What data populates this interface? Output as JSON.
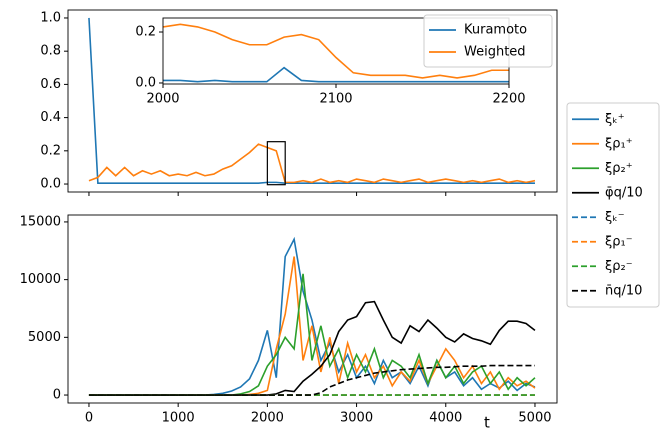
{
  "chart_data": [
    {
      "type": "line",
      "x": [
        0,
        100,
        200,
        300,
        400,
        500,
        600,
        700,
        800,
        900,
        1000,
        1100,
        1200,
        1300,
        1400,
        1500,
        1600,
        1700,
        1800,
        1900,
        2000,
        2100,
        2200,
        2300,
        2400,
        2500,
        2600,
        2700,
        2800,
        2900,
        3000,
        3100,
        3200,
        3300,
        3400,
        3500,
        3600,
        3700,
        3800,
        3900,
        4000,
        4100,
        4200,
        4300,
        4400,
        4500,
        4600,
        4700,
        4800,
        4900,
        5000
      ],
      "series": [
        {
          "color": "#1f77b4",
          "values": [
            1.0,
            0.005,
            0.005,
            0.005,
            0.005,
            0.005,
            0.005,
            0.005,
            0.005,
            0.005,
            0.005,
            0.005,
            0.005,
            0.005,
            0.005,
            0.005,
            0.005,
            0.005,
            0.005,
            0.005,
            0.01,
            0.01,
            0.005,
            0.005,
            0.005,
            0.005,
            0.005,
            0.005,
            0.005,
            0.005,
            0.005,
            0.005,
            0.005,
            0.005,
            0.005,
            0.005,
            0.005,
            0.005,
            0.005,
            0.005,
            0.005,
            0.005,
            0.005,
            0.005,
            0.005,
            0.005,
            0.005,
            0.005,
            0.005,
            0.005,
            0.005
          ]
        },
        {
          "color": "#ff7f0e",
          "values": [
            0.02,
            0.04,
            0.1,
            0.05,
            0.1,
            0.05,
            0.08,
            0.06,
            0.08,
            0.05,
            0.06,
            0.05,
            0.07,
            0.05,
            0.06,
            0.09,
            0.11,
            0.15,
            0.19,
            0.24,
            0.22,
            0.2,
            0.01,
            0.01,
            0.02,
            0.01,
            0.03,
            0.01,
            0.02,
            0.01,
            0.03,
            0.02,
            0.01,
            0.03,
            0.02,
            0.01,
            0.02,
            0.03,
            0.01,
            0.02,
            0.03,
            0.02,
            0.01,
            0.02,
            0.01,
            0.02,
            0.03,
            0.01,
            0.02,
            0.01,
            0.02
          ]
        }
      ],
      "xlim": [
        -235,
        5247
      ],
      "xticks": [
        0,
        1000,
        2000,
        3000,
        4000,
        5000
      ],
      "ylim": [
        -0.048,
        1.048
      ],
      "yticks": [
        {
          "value": 0,
          "label": "0.0"
        },
        0.2,
        0.4,
        0.6,
        0.8,
        {
          "value": 1,
          "label": "1.0"
        }
      ]
    },
    {
      "type": "line",
      "x": [
        2000,
        2010,
        2020,
        2030,
        2040,
        2050,
        2060,
        2070,
        2080,
        2090,
        2100,
        2110,
        2120,
        2130,
        2140,
        2150,
        2160,
        2170,
        2180,
        2190,
        2200
      ],
      "series": [
        {
          "name": "Kuramoto",
          "color": "#1f77b4",
          "values": [
            0.01,
            0.01,
            0.005,
            0.01,
            0.005,
            0.005,
            0.005,
            0.06,
            0.01,
            0.005,
            0.005,
            0.005,
            0.005,
            0.005,
            0.005,
            0.005,
            0.005,
            0.005,
            0.005,
            0.005,
            0.005
          ]
        },
        {
          "name": "Weighted",
          "color": "#ff7f0e",
          "values": [
            0.22,
            0.23,
            0.22,
            0.2,
            0.17,
            0.15,
            0.15,
            0.18,
            0.19,
            0.17,
            0.1,
            0.04,
            0.03,
            0.03,
            0.03,
            0.02,
            0.03,
            0.02,
            0.03,
            0.05,
            0.05
          ]
        }
      ],
      "xlim": [
        2000,
        2200
      ],
      "xticks": [
        2000,
        2100,
        2200
      ],
      "ylim": [
        -0.004,
        0.255
      ],
      "yticks": [
        {
          "value": 0,
          "label": "0.0"
        },
        0.2
      ],
      "legend": "upper right"
    },
    {
      "type": "line",
      "xlabel": "t",
      "x": [
        0,
        100,
        200,
        300,
        400,
        500,
        600,
        700,
        800,
        900,
        1000,
        1100,
        1200,
        1300,
        1400,
        1500,
        1600,
        1700,
        1800,
        1900,
        2000,
        2100,
        2200,
        2300,
        2400,
        2500,
        2600,
        2700,
        2800,
        2900,
        3000,
        3100,
        3200,
        3300,
        3400,
        3500,
        3600,
        3700,
        3800,
        3900,
        4000,
        4100,
        4200,
        4300,
        4400,
        4500,
        4600,
        4700,
        4800,
        4900,
        5000
      ],
      "series": [
        {
          "name": "ξₖ⁺",
          "color": "#1f77b4",
          "linestyle": "solid",
          "values": [
            0,
            0,
            0,
            0,
            0,
            0,
            0,
            0,
            0,
            0,
            0,
            0,
            0,
            0,
            50,
            150,
            350,
            700,
            1400,
            3000,
            5600,
            1500,
            12000,
            13500,
            9000,
            6500,
            3000,
            4500,
            2000,
            3500,
            1500,
            2500,
            1000,
            3000,
            1500,
            2000,
            1000,
            2500,
            800,
            3000,
            1500,
            2000,
            800,
            1500,
            500,
            1000,
            600,
            1200,
            400,
            1000,
            700
          ]
        },
        {
          "name": "ξρ₁⁺",
          "color": "#ff7f0e",
          "linestyle": "solid",
          "values": [
            0,
            0,
            0,
            0,
            0,
            0,
            0,
            0,
            0,
            0,
            0,
            0,
            0,
            0,
            0,
            0,
            0,
            0,
            50,
            150,
            400,
            4000,
            7000,
            12000,
            3000,
            6000,
            2000,
            5000,
            1000,
            4500,
            2000,
            3500,
            1500,
            2500,
            800,
            2000,
            1200,
            3000,
            1000,
            2500,
            4000,
            3000,
            1500,
            2500,
            1000,
            2000,
            500,
            1500,
            800,
            1200,
            600
          ]
        },
        {
          "name": "ξρ₂⁺",
          "color": "#2ca02c",
          "linestyle": "solid",
          "values": [
            0,
            0,
            0,
            0,
            0,
            0,
            0,
            0,
            0,
            0,
            0,
            0,
            0,
            0,
            0,
            0,
            0,
            100,
            300,
            800,
            2500,
            3500,
            5000,
            4000,
            10500,
            3000,
            6000,
            2500,
            4000,
            1500,
            3500,
            2000,
            4000,
            1500,
            3000,
            2500,
            1500,
            3500,
            1000,
            3000,
            1500,
            2500,
            1000,
            2000,
            2500,
            1000,
            2000,
            500,
            1500,
            800,
            1500
          ]
        },
        {
          "name": "φ̄q/10",
          "color": "#000000",
          "linestyle": "solid",
          "values": [
            0,
            0,
            0,
            0,
            0,
            0,
            0,
            0,
            0,
            0,
            0,
            0,
            0,
            0,
            0,
            0,
            0,
            0,
            0,
            0,
            0,
            100,
            400,
            300,
            1200,
            1800,
            2500,
            3500,
            5500,
            6500,
            6800,
            8000,
            8100,
            6500,
            5000,
            4500,
            6000,
            5500,
            6500,
            5800,
            5000,
            4600,
            5300,
            4900,
            4700,
            4400,
            5600,
            6400,
            6400,
            6200,
            5600
          ]
        },
        {
          "name": "ξₖ⁻",
          "color": "#1f77b4",
          "linestyle": "dashed",
          "values": [
            0,
            0,
            0,
            0,
            0,
            0,
            0,
            0,
            0,
            0,
            0,
            0,
            0,
            0,
            0,
            0,
            0,
            0,
            0,
            0,
            0,
            0,
            0,
            0,
            0,
            0,
            0,
            0,
            0,
            0,
            0,
            0,
            0,
            0,
            0,
            0,
            0,
            0,
            0,
            0,
            0,
            0,
            0,
            0,
            0,
            0,
            0,
            0,
            0,
            0,
            0
          ]
        },
        {
          "name": "ξρ₁⁻",
          "color": "#ff7f0e",
          "linestyle": "dashed",
          "values": [
            0,
            0,
            0,
            0,
            0,
            0,
            0,
            0,
            0,
            0,
            0,
            0,
            0,
            0,
            0,
            0,
            0,
            0,
            0,
            0,
            0,
            0,
            0,
            0,
            0,
            0,
            0,
            0,
            0,
            0,
            0,
            0,
            0,
            0,
            0,
            0,
            0,
            0,
            0,
            0,
            0,
            0,
            0,
            0,
            0,
            0,
            0,
            0,
            0,
            0,
            0
          ]
        },
        {
          "name": "ξρ₂⁻",
          "color": "#2ca02c",
          "linestyle": "dashed",
          "values": [
            0,
            0,
            0,
            0,
            0,
            0,
            0,
            0,
            0,
            0,
            0,
            0,
            0,
            0,
            0,
            0,
            0,
            0,
            0,
            0,
            0,
            0,
            0,
            0,
            0,
            0,
            0,
            0,
            0,
            0,
            0,
            0,
            0,
            0,
            0,
            0,
            0,
            0,
            0,
            0,
            0,
            0,
            0,
            0,
            0,
            0,
            0,
            0,
            0,
            0,
            0
          ]
        },
        {
          "name": "n̄q/10",
          "color": "#000000",
          "linestyle": "dashed",
          "values": [
            0,
            0,
            0,
            0,
            0,
            0,
            0,
            0,
            0,
            0,
            0,
            0,
            0,
            0,
            0,
            0,
            0,
            0,
            0,
            0,
            0,
            0,
            0,
            0,
            0,
            0,
            200,
            700,
            1000,
            1300,
            1500,
            1700,
            1900,
            2000,
            2100,
            2200,
            2250,
            2300,
            2350,
            2400,
            2400,
            2450,
            2500,
            2500,
            2500,
            2550,
            2550,
            2550,
            2550,
            2550,
            2550
          ]
        }
      ],
      "xlim": [
        -235,
        5247
      ],
      "xticks": [
        0,
        1000,
        2000,
        3000,
        4000,
        5000
      ],
      "ylim": [
        -690,
        15600
      ],
      "yticks": [
        0,
        5000,
        10000,
        15000
      ],
      "legend": "outside right"
    }
  ]
}
